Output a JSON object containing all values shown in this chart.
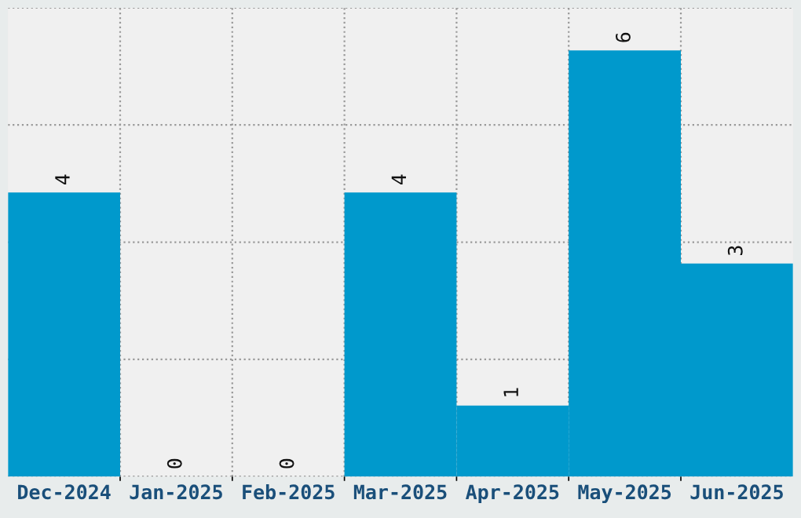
{
  "chart_data": {
    "type": "bar",
    "categories": [
      "Dec-2024",
      "Jan-2025",
      "Feb-2025",
      "Mar-2025",
      "Apr-2025",
      "May-2025",
      "Jun-2025"
    ],
    "values": [
      4,
      0,
      0,
      4,
      1,
      6,
      3
    ],
    "color": "#0099cc",
    "ylim": [
      0,
      6.6
    ],
    "yticks": [
      {
        "value": 0,
        "label": null
      },
      {
        "value": 1.65,
        "label": null
      },
      {
        "value": 3.3,
        "label": null
      },
      {
        "value": 4.95,
        "label": null
      },
      {
        "value": 6.6,
        "label": null
      }
    ],
    "tick_labels": "x",
    "grid": true,
    "data_labels": true
  }
}
